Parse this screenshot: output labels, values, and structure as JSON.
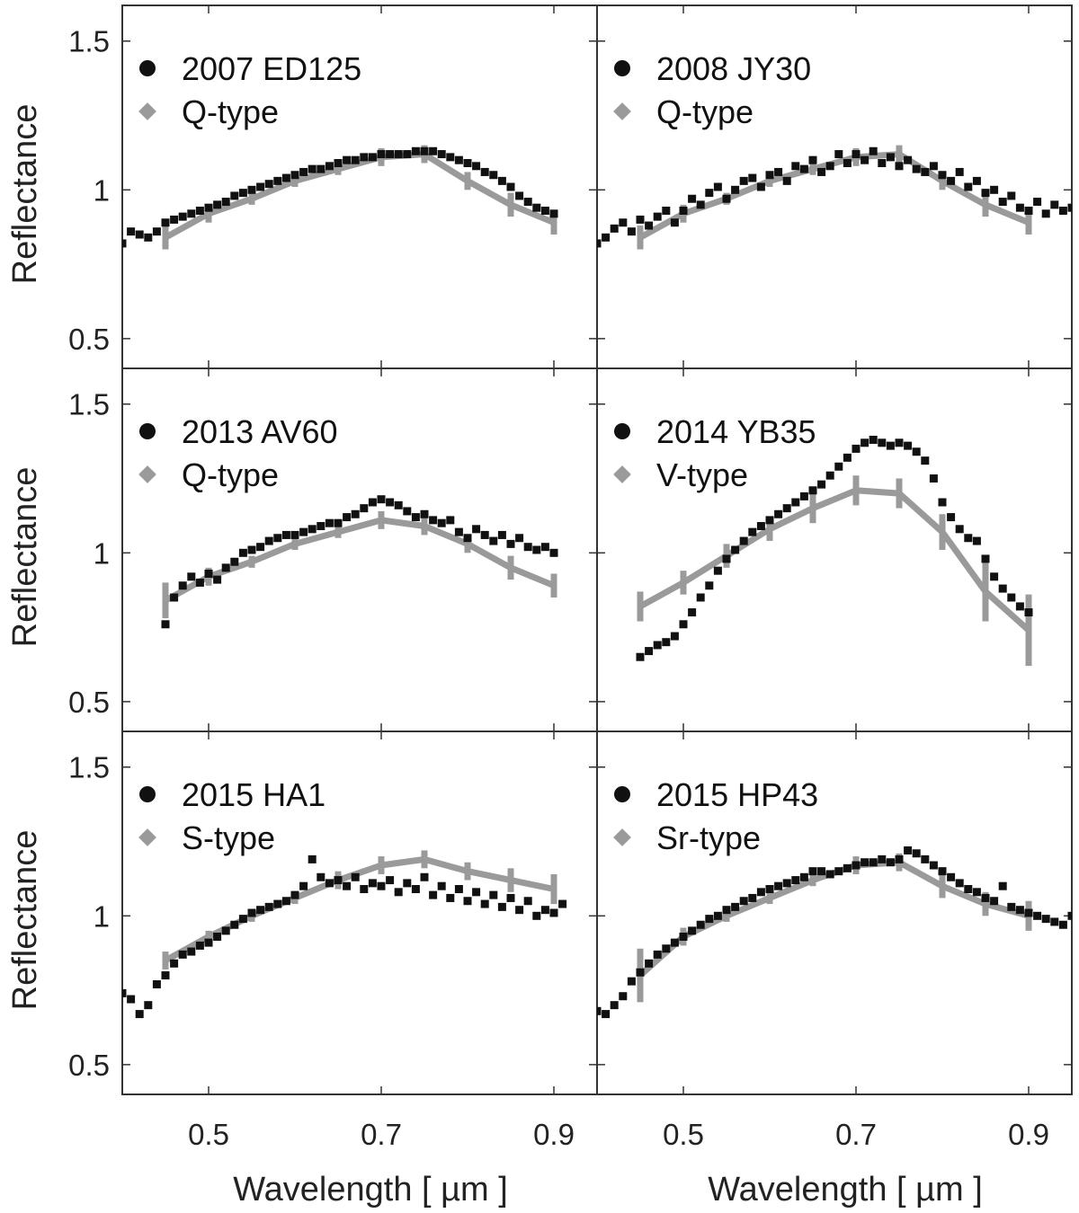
{
  "chart_data": {
    "type": "scatter",
    "layout": "3x2 grid of panels",
    "xlabel": "Wavelength [ µm ]",
    "ylabel": "Reflectance",
    "xlim": [
      0.4,
      0.95
    ],
    "ylim": [
      0.4,
      1.62
    ],
    "xticks": [
      0.5,
      0.7,
      0.9
    ],
    "xtick_labels": [
      "0.5",
      "0.7",
      "0.9"
    ],
    "yticks": [
      0.5,
      1.0,
      1.5
    ],
    "ytick_labels": [
      "0.5",
      "1",
      "1.5"
    ],
    "colors": {
      "spectrum": "#111111",
      "template": "#9a9a9a",
      "axes": "#333333"
    },
    "panels": [
      {
        "object": "2007 ED125",
        "type_label": "Q-type",
        "spectrum": {
          "x": [
            0.4,
            0.41,
            0.42,
            0.43,
            0.44,
            0.45,
            0.46,
            0.47,
            0.48,
            0.49,
            0.5,
            0.51,
            0.52,
            0.53,
            0.54,
            0.55,
            0.56,
            0.57,
            0.58,
            0.59,
            0.6,
            0.61,
            0.62,
            0.63,
            0.64,
            0.65,
            0.66,
            0.67,
            0.68,
            0.69,
            0.7,
            0.71,
            0.72,
            0.73,
            0.74,
            0.75,
            0.76,
            0.77,
            0.78,
            0.79,
            0.8,
            0.81,
            0.82,
            0.83,
            0.84,
            0.85,
            0.86,
            0.87,
            0.88,
            0.89,
            0.9
          ],
          "y": [
            0.82,
            0.86,
            0.85,
            0.84,
            0.86,
            0.89,
            0.9,
            0.91,
            0.92,
            0.93,
            0.94,
            0.95,
            0.96,
            0.98,
            0.99,
            1.0,
            1.01,
            1.02,
            1.03,
            1.04,
            1.05,
            1.06,
            1.07,
            1.07,
            1.08,
            1.09,
            1.1,
            1.1,
            1.11,
            1.11,
            1.12,
            1.12,
            1.12,
            1.12,
            1.13,
            1.13,
            1.13,
            1.12,
            1.11,
            1.1,
            1.09,
            1.08,
            1.06,
            1.05,
            1.03,
            1.01,
            0.98,
            0.96,
            0.94,
            0.93,
            0.92
          ]
        },
        "template": {
          "x": [
            0.45,
            0.5,
            0.55,
            0.6,
            0.65,
            0.7,
            0.75,
            0.8,
            0.85,
            0.9
          ],
          "y": [
            0.84,
            0.92,
            0.97,
            1.03,
            1.07,
            1.11,
            1.12,
            1.03,
            0.95,
            0.89
          ],
          "err": [
            0.04,
            0.03,
            0.02,
            0.02,
            0.02,
            0.03,
            0.03,
            0.03,
            0.04,
            0.04
          ]
        }
      },
      {
        "object": "2008 JY30",
        "type_label": "Q-type",
        "spectrum": {
          "x": [
            0.4,
            0.41,
            0.42,
            0.43,
            0.44,
            0.45,
            0.46,
            0.47,
            0.48,
            0.49,
            0.5,
            0.51,
            0.52,
            0.53,
            0.54,
            0.55,
            0.56,
            0.57,
            0.58,
            0.59,
            0.6,
            0.61,
            0.62,
            0.63,
            0.64,
            0.65,
            0.66,
            0.67,
            0.68,
            0.69,
            0.7,
            0.71,
            0.72,
            0.73,
            0.74,
            0.75,
            0.76,
            0.77,
            0.78,
            0.79,
            0.8,
            0.81,
            0.82,
            0.83,
            0.84,
            0.85,
            0.86,
            0.87,
            0.88,
            0.89,
            0.9,
            0.91,
            0.92,
            0.93,
            0.94,
            0.95
          ],
          "y": [
            0.82,
            0.84,
            0.87,
            0.89,
            0.86,
            0.9,
            0.88,
            0.91,
            0.93,
            0.89,
            0.93,
            0.97,
            0.95,
            0.99,
            1.01,
            0.97,
            1.0,
            1.03,
            1.04,
            1.01,
            1.05,
            1.06,
            1.03,
            1.08,
            1.07,
            1.1,
            1.06,
            1.08,
            1.12,
            1.09,
            1.12,
            1.1,
            1.13,
            1.09,
            1.11,
            1.08,
            1.1,
            1.07,
            1.06,
            1.08,
            1.05,
            1.03,
            1.06,
            1.01,
            1.03,
            0.99,
            1.0,
            0.96,
            0.98,
            0.94,
            0.93,
            0.96,
            0.92,
            0.95,
            0.93,
            0.94
          ]
        },
        "template": {
          "x": [
            0.45,
            0.5,
            0.55,
            0.6,
            0.65,
            0.7,
            0.75,
            0.8,
            0.85,
            0.9
          ],
          "y": [
            0.84,
            0.92,
            0.97,
            1.03,
            1.07,
            1.11,
            1.12,
            1.03,
            0.95,
            0.89
          ],
          "err": [
            0.04,
            0.03,
            0.02,
            0.02,
            0.02,
            0.03,
            0.03,
            0.03,
            0.04,
            0.04
          ]
        }
      },
      {
        "object": "2013 AV60",
        "type_label": "Q-type",
        "spectrum": {
          "x": [
            0.45,
            0.46,
            0.47,
            0.48,
            0.49,
            0.5,
            0.51,
            0.52,
            0.53,
            0.54,
            0.55,
            0.56,
            0.57,
            0.58,
            0.59,
            0.6,
            0.61,
            0.62,
            0.63,
            0.64,
            0.65,
            0.66,
            0.67,
            0.68,
            0.69,
            0.7,
            0.71,
            0.72,
            0.73,
            0.74,
            0.75,
            0.76,
            0.77,
            0.78,
            0.79,
            0.8,
            0.81,
            0.82,
            0.83,
            0.84,
            0.85,
            0.86,
            0.87,
            0.88,
            0.89,
            0.9
          ],
          "y": [
            0.76,
            0.85,
            0.89,
            0.92,
            0.9,
            0.93,
            0.91,
            0.95,
            0.97,
            1.0,
            1.01,
            1.02,
            1.04,
            1.05,
            1.06,
            1.06,
            1.07,
            1.08,
            1.09,
            1.1,
            1.1,
            1.12,
            1.13,
            1.15,
            1.17,
            1.18,
            1.17,
            1.16,
            1.14,
            1.12,
            1.13,
            1.11,
            1.1,
            1.11,
            1.07,
            1.05,
            1.08,
            1.06,
            1.04,
            1.06,
            1.03,
            1.05,
            1.02,
            1.01,
            1.02,
            1.0
          ]
        },
        "template": {
          "x": [
            0.45,
            0.5,
            0.55,
            0.6,
            0.65,
            0.7,
            0.75,
            0.8,
            0.85,
            0.9
          ],
          "y": [
            0.84,
            0.92,
            0.97,
            1.03,
            1.07,
            1.11,
            1.09,
            1.03,
            0.95,
            0.89
          ],
          "err": [
            0.06,
            0.03,
            0.02,
            0.02,
            0.02,
            0.03,
            0.03,
            0.03,
            0.04,
            0.04
          ]
        }
      },
      {
        "object": "2014 YB35",
        "type_label": "V-type",
        "spectrum": {
          "x": [
            0.45,
            0.46,
            0.47,
            0.48,
            0.49,
            0.5,
            0.51,
            0.52,
            0.53,
            0.54,
            0.55,
            0.56,
            0.57,
            0.58,
            0.59,
            0.6,
            0.61,
            0.62,
            0.63,
            0.64,
            0.65,
            0.66,
            0.67,
            0.68,
            0.69,
            0.7,
            0.71,
            0.72,
            0.73,
            0.74,
            0.75,
            0.76,
            0.77,
            0.78,
            0.79,
            0.8,
            0.81,
            0.82,
            0.83,
            0.84,
            0.85,
            0.86,
            0.87,
            0.88,
            0.89,
            0.9
          ],
          "y": [
            0.65,
            0.67,
            0.69,
            0.7,
            0.72,
            0.76,
            0.8,
            0.85,
            0.89,
            0.94,
            0.98,
            1.01,
            1.04,
            1.07,
            1.09,
            1.11,
            1.13,
            1.15,
            1.17,
            1.19,
            1.21,
            1.23,
            1.26,
            1.29,
            1.32,
            1.35,
            1.37,
            1.38,
            1.37,
            1.36,
            1.37,
            1.36,
            1.34,
            1.31,
            1.25,
            1.17,
            1.12,
            1.08,
            1.05,
            1.04,
            0.98,
            0.92,
            0.88,
            0.85,
            0.82,
            0.8
          ]
        },
        "template": {
          "x": [
            0.45,
            0.5,
            0.55,
            0.6,
            0.65,
            0.7,
            0.75,
            0.8,
            0.85,
            0.9
          ],
          "y": [
            0.82,
            0.9,
            0.99,
            1.08,
            1.15,
            1.21,
            1.2,
            1.07,
            0.87,
            0.74
          ],
          "err": [
            0.05,
            0.04,
            0.04,
            0.04,
            0.05,
            0.05,
            0.05,
            0.06,
            0.1,
            0.12
          ]
        }
      },
      {
        "object": "2015 HA1",
        "type_label": "S-type",
        "spectrum": {
          "x": [
            0.4,
            0.41,
            0.42,
            0.43,
            0.44,
            0.45,
            0.46,
            0.47,
            0.48,
            0.49,
            0.5,
            0.51,
            0.52,
            0.53,
            0.54,
            0.55,
            0.56,
            0.57,
            0.58,
            0.59,
            0.6,
            0.61,
            0.62,
            0.63,
            0.64,
            0.65,
            0.66,
            0.67,
            0.68,
            0.69,
            0.7,
            0.71,
            0.72,
            0.73,
            0.74,
            0.75,
            0.76,
            0.77,
            0.78,
            0.79,
            0.8,
            0.81,
            0.82,
            0.83,
            0.84,
            0.85,
            0.86,
            0.87,
            0.88,
            0.89,
            0.9,
            0.91
          ],
          "y": [
            0.74,
            0.72,
            0.67,
            0.7,
            0.77,
            0.8,
            0.84,
            0.87,
            0.88,
            0.9,
            0.91,
            0.93,
            0.95,
            0.97,
            0.99,
            1.01,
            1.02,
            1.03,
            1.04,
            1.05,
            1.07,
            1.1,
            1.19,
            1.13,
            1.11,
            1.12,
            1.1,
            1.13,
            1.09,
            1.11,
            1.1,
            1.12,
            1.08,
            1.11,
            1.09,
            1.13,
            1.07,
            1.1,
            1.06,
            1.09,
            1.05,
            1.08,
            1.04,
            1.07,
            1.03,
            1.06,
            1.02,
            1.05,
            1.0,
            1.02,
            1.01,
            1.04
          ]
        },
        "template": {
          "x": [
            0.45,
            0.5,
            0.55,
            0.6,
            0.65,
            0.7,
            0.75,
            0.8,
            0.85,
            0.9
          ],
          "y": [
            0.85,
            0.93,
            1.0,
            1.06,
            1.12,
            1.17,
            1.19,
            1.15,
            1.12,
            1.09
          ],
          "err": [
            0.03,
            0.02,
            0.02,
            0.02,
            0.03,
            0.03,
            0.03,
            0.03,
            0.04,
            0.05
          ]
        }
      },
      {
        "object": "2015 HP43",
        "type_label": "Sr-type",
        "spectrum": {
          "x": [
            0.4,
            0.41,
            0.42,
            0.43,
            0.44,
            0.45,
            0.46,
            0.47,
            0.48,
            0.49,
            0.5,
            0.51,
            0.52,
            0.53,
            0.54,
            0.55,
            0.56,
            0.57,
            0.58,
            0.59,
            0.6,
            0.61,
            0.62,
            0.63,
            0.64,
            0.65,
            0.66,
            0.67,
            0.68,
            0.69,
            0.7,
            0.71,
            0.72,
            0.73,
            0.74,
            0.75,
            0.76,
            0.77,
            0.78,
            0.79,
            0.8,
            0.81,
            0.82,
            0.83,
            0.84,
            0.85,
            0.86,
            0.87,
            0.88,
            0.89,
            0.9,
            0.91,
            0.92,
            0.93,
            0.94,
            0.95
          ],
          "y": [
            0.68,
            0.67,
            0.7,
            0.73,
            0.78,
            0.81,
            0.84,
            0.87,
            0.89,
            0.91,
            0.93,
            0.95,
            0.97,
            0.99,
            1.0,
            1.02,
            1.03,
            1.05,
            1.06,
            1.08,
            1.09,
            1.1,
            1.11,
            1.12,
            1.13,
            1.15,
            1.15,
            1.14,
            1.15,
            1.16,
            1.17,
            1.18,
            1.18,
            1.19,
            1.18,
            1.19,
            1.22,
            1.21,
            1.19,
            1.17,
            1.15,
            1.13,
            1.11,
            1.09,
            1.08,
            1.06,
            1.05,
            1.1,
            1.03,
            1.02,
            1.01,
            1.0,
            0.99,
            0.98,
            0.97,
            1.0
          ]
        },
        "template": {
          "x": [
            0.45,
            0.5,
            0.55,
            0.6,
            0.65,
            0.7,
            0.75,
            0.8,
            0.85,
            0.9
          ],
          "y": [
            0.8,
            0.93,
            1.0,
            1.06,
            1.12,
            1.17,
            1.18,
            1.1,
            1.04,
            1.0
          ],
          "err": [
            0.09,
            0.03,
            0.02,
            0.02,
            0.02,
            0.03,
            0.03,
            0.04,
            0.04,
            0.05
          ]
        }
      }
    ]
  }
}
